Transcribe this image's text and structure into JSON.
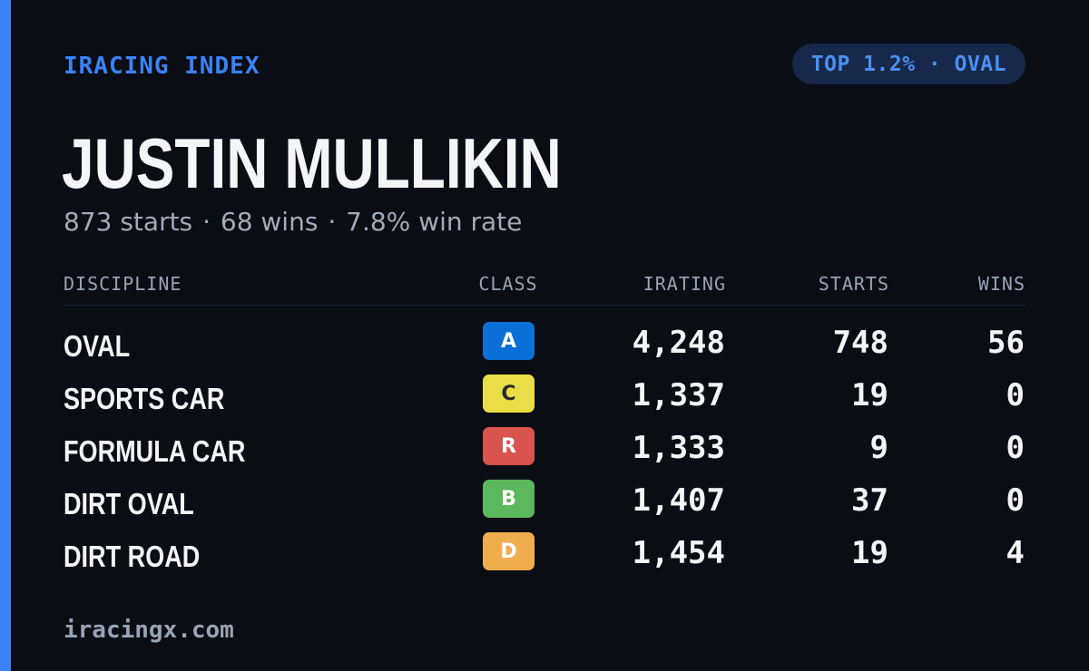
{
  "brand": "IRACING INDEX",
  "badge": "TOP 1.2% · OVAL",
  "driver": {
    "name": "JUSTIN MULLIKIN",
    "starts_text": "873 starts",
    "wins_text": "68 wins",
    "win_rate_text": "7.8% win rate",
    "separator": "·"
  },
  "table": {
    "headers": {
      "discipline": "DISCIPLINE",
      "class": "CLASS",
      "irating": "IRATING",
      "starts": "STARTS",
      "wins": "WINS"
    },
    "rows": [
      {
        "discipline": "OVAL",
        "class": "A",
        "class_color": "#0a6fd6",
        "class_text_color": "#ffffff",
        "irating": "4,248",
        "starts": "748",
        "wins": "56"
      },
      {
        "discipline": "SPORTS CAR",
        "class": "C",
        "class_color": "#eadd47",
        "class_text_color": "#2a2a2a",
        "irating": "1,337",
        "starts": "19",
        "wins": "0"
      },
      {
        "discipline": "FORMULA CAR",
        "class": "R",
        "class_color": "#d9534f",
        "class_text_color": "#ffffff",
        "irating": "1,333",
        "starts": "9",
        "wins": "0"
      },
      {
        "discipline": "DIRT OVAL",
        "class": "B",
        "class_color": "#5cb85c",
        "class_text_color": "#ffffff",
        "irating": "1,407",
        "starts": "37",
        "wins": "0"
      },
      {
        "discipline": "DIRT ROAD",
        "class": "D",
        "class_color": "#f0ad4e",
        "class_text_color": "#ffffff",
        "irating": "1,454",
        "starts": "19",
        "wins": "4"
      }
    ]
  },
  "footer": "iracingx.com",
  "colors": {
    "accent": "#3b82f6",
    "background": "#0a0d14",
    "badge_bg": "#17284a"
  }
}
